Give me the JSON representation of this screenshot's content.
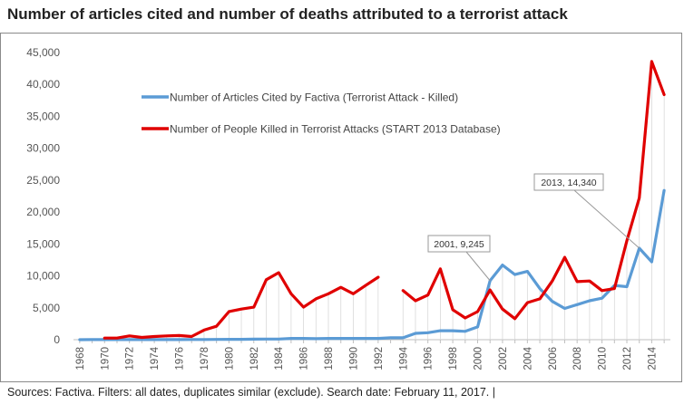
{
  "title": "Number of articles cited and number of deaths attributed to a terrorist attack",
  "source": "Sources: Factiva. Filters: all dates, duplicates similar (exclude). Search date: February 11, 2017. |",
  "chart_data": {
    "type": "line",
    "x": [
      1968,
      1969,
      1970,
      1971,
      1972,
      1973,
      1974,
      1975,
      1976,
      1977,
      1978,
      1979,
      1980,
      1981,
      1982,
      1983,
      1984,
      1985,
      1986,
      1987,
      1988,
      1989,
      1990,
      1991,
      1992,
      1993,
      1994,
      1995,
      1996,
      1997,
      1998,
      1999,
      2000,
      2001,
      2002,
      2003,
      2004,
      2005,
      2006,
      2007,
      2008,
      2009,
      2010,
      2011,
      2012,
      2013,
      2014,
      2015
    ],
    "xlim": [
      1967.5,
      2015.5
    ],
    "ylim": [
      0,
      45000
    ],
    "y_ticks": [
      0,
      5000,
      10000,
      15000,
      20000,
      25000,
      30000,
      35000,
      40000,
      45000
    ],
    "y_tick_labels": [
      "0",
      "5,000",
      "10,000",
      "15,000",
      "20,000",
      "25,000",
      "30,000",
      "35,000",
      "40,000",
      "45,000"
    ],
    "x_tick_labels": [
      "1968",
      "1970",
      "1972",
      "1974",
      "1976",
      "1978",
      "1980",
      "1982",
      "1984",
      "1986",
      "1988",
      "1990",
      "1992",
      "1994",
      "1996",
      "1998",
      "2000",
      "2002",
      "2004",
      "2006",
      "2008",
      "2010",
      "2012",
      "2014"
    ],
    "grid": false,
    "legend_position": "top-left",
    "series": [
      {
        "name": "Number of Articles Cited by Factiva (Terrorist Attack - Killed)",
        "color": "#5b9bd5",
        "values": [
          0,
          10,
          20,
          20,
          20,
          20,
          20,
          20,
          20,
          30,
          30,
          40,
          60,
          60,
          80,
          100,
          100,
          200,
          200,
          150,
          200,
          200,
          200,
          200,
          200,
          300,
          300,
          1000,
          1100,
          1400,
          1400,
          1300,
          2000,
          9245,
          11700,
          10200,
          10700,
          8000,
          6000,
          4900,
          5500,
          6100,
          6500,
          8500,
          8300,
          14340,
          12200,
          23400
        ]
      },
      {
        "name": "Number of People Killed in Terrorist Attacks (START 2013 Database)",
        "color": "#e00000",
        "values": [
          null,
          null,
          250,
          250,
          600,
          350,
          500,
          600,
          650,
          500,
          1500,
          2100,
          4400,
          4800,
          5100,
          9400,
          10500,
          7200,
          5100,
          6400,
          7200,
          8200,
          7200,
          8500,
          9800,
          null,
          7700,
          6100,
          7000,
          11100,
          4700,
          3400,
          4400,
          7800,
          4800,
          3300,
          5800,
          6400,
          9200,
          12900,
          9100,
          9200,
          7700,
          8000,
          15500,
          22200,
          43600,
          38400
        ]
      }
    ],
    "annotations": [
      {
        "text": "2001,  9,245",
        "x": 2001,
        "y": 9245
      },
      {
        "text": "2013,  14,340",
        "x": 2013,
        "y": 14340
      }
    ]
  }
}
